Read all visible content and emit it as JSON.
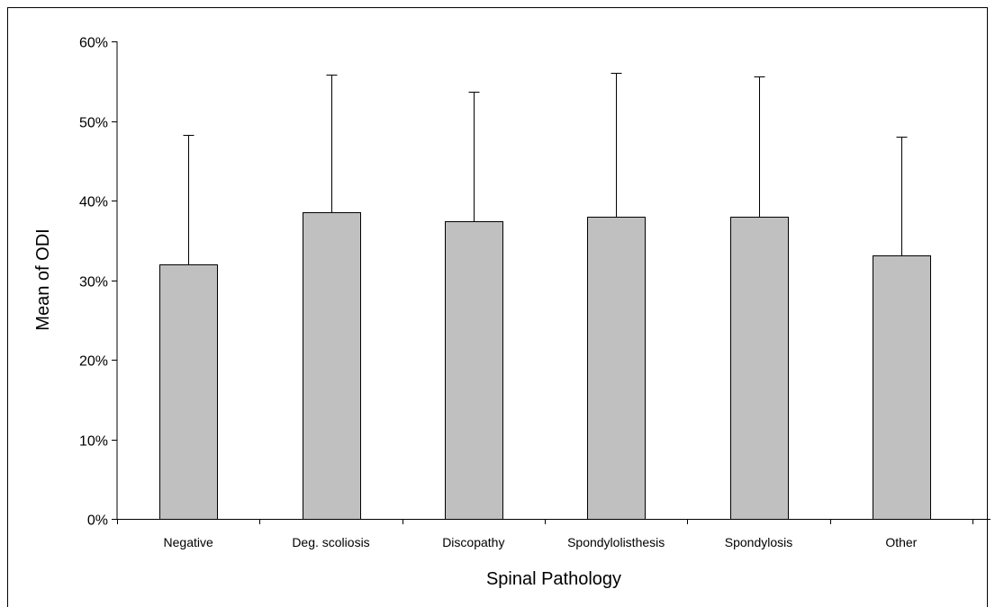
{
  "chart_data": {
    "type": "bar",
    "categories": [
      "Negative",
      "Deg. scoliosis",
      "Discopathy",
      "Spondylolisthesis",
      "Spondylosis",
      "Other"
    ],
    "series": [
      {
        "values": [
          32.0,
          38.5,
          37.4,
          38.0,
          38.0,
          33.1
        ],
        "error_plus": [
          16.3,
          17.3,
          16.3,
          18.1,
          17.6,
          14.9
        ]
      }
    ],
    "xlabel": "Spinal Pathology",
    "ylabel": "Mean of ODI",
    "ylim": [
      0,
      60
    ],
    "yticks": [
      0,
      10,
      20,
      30,
      40,
      50,
      60
    ],
    "ytick_labels": [
      "0%",
      "10%",
      "20%",
      "30%",
      "40%",
      "50%",
      "60%"
    ],
    "grid": false,
    "legend": "none",
    "bar_color": "#c0c0c0",
    "bar_edge_color": "#000000"
  }
}
